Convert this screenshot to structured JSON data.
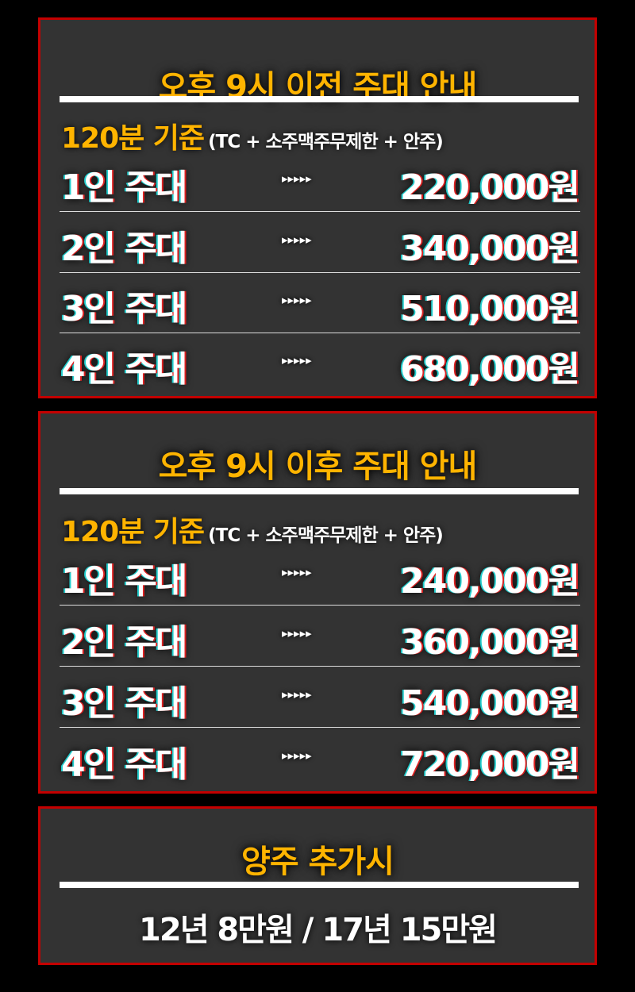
{
  "colors": {
    "accent": "#ffb400",
    "border": "#c40000",
    "panel": "#333333"
  },
  "sections": [
    {
      "title": "오후 9시 이전 주대 안내",
      "basis": "120분 기준",
      "includes": "(TC + 소주맥주무제한 + 안주)",
      "rows": [
        {
          "label": "1인 주대",
          "arrow": "▸▸▸▸▸",
          "price": "220,000원"
        },
        {
          "label": "2인 주대",
          "arrow": "▸▸▸▸▸",
          "price": "340,000원"
        },
        {
          "label": "3인 주대",
          "arrow": "▸▸▸▸▸",
          "price": "510,000원"
        },
        {
          "label": "4인 주대",
          "arrow": "▸▸▸▸▸",
          "price": "680,000원"
        }
      ]
    },
    {
      "title": "오후 9시 이후 주대 안내",
      "basis": "120분 기준",
      "includes": "(TC + 소주맥주무제한 + 안주)",
      "rows": [
        {
          "label": "1인 주대",
          "arrow": "▸▸▸▸▸",
          "price": "240,000원"
        },
        {
          "label": "2인 주대",
          "arrow": "▸▸▸▸▸",
          "price": "360,000원"
        },
        {
          "label": "3인 주대",
          "arrow": "▸▸▸▸▸",
          "price": "540,000원"
        },
        {
          "label": "4인 주대",
          "arrow": "▸▸▸▸▸",
          "price": "720,000원"
        }
      ]
    }
  ],
  "extra": {
    "title": "양주 추가시",
    "text": "12년 8만원 / 17년 15만원"
  }
}
